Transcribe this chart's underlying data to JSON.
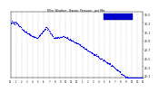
{
  "title": "Milw. Weather - Barom. Pressure - per Min.",
  "dot_color": "#0000ff",
  "dot_size": 0.8,
  "background_color": "#ffffff",
  "plot_bg_color": "#ffffff",
  "grid_color": "#999999",
  "ylim": [
    29.05,
    30.55
  ],
  "xlim": [
    0,
    1440
  ],
  "yticks": [
    29.1,
    29.3,
    29.5,
    29.7,
    29.9,
    30.1,
    30.3,
    30.5
  ],
  "ytick_labels": [
    "29.1",
    "29.3",
    "29.5",
    "29.7",
    "29.9",
    "30.1",
    "30.3",
    "30.5"
  ],
  "xtick_positions": [
    0,
    60,
    120,
    180,
    240,
    300,
    360,
    420,
    480,
    540,
    600,
    660,
    720,
    780,
    840,
    900,
    960,
    1020,
    1080,
    1140,
    1200,
    1260,
    1320,
    1380,
    1440
  ],
  "xtick_labels": [
    "12",
    "1",
    "2",
    "3",
    "4",
    "5",
    "6",
    "7",
    "8",
    "9",
    "10",
    "11",
    "12",
    "1",
    "2",
    "3",
    "4",
    "5",
    "6",
    "7",
    "8",
    "9",
    "10",
    "11",
    "12"
  ],
  "legend_rect_color": "#0000cc",
  "seed": 42
}
